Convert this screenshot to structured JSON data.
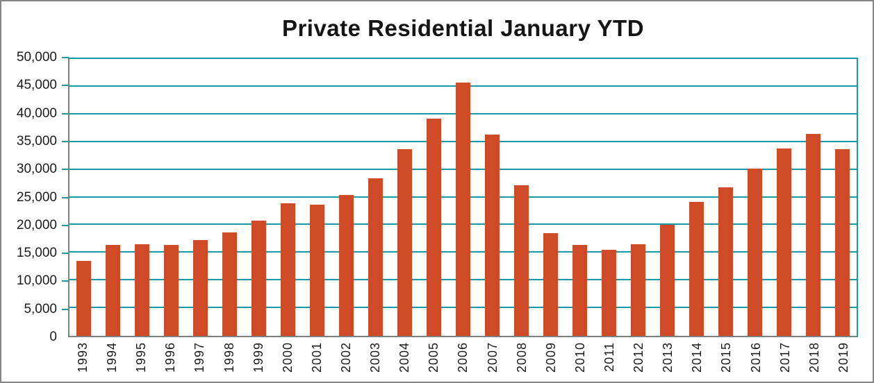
{
  "chart_data": {
    "type": "bar",
    "title": "Private Residential January YTD",
    "categories": [
      "1993",
      "1994",
      "1995",
      "1996",
      "1997",
      "1998",
      "1999",
      "2000",
      "2001",
      "2002",
      "2003",
      "2004",
      "2005",
      "2006",
      "2007",
      "2008",
      "2009",
      "2010",
      "2011",
      "2012",
      "2013",
      "2014",
      "2015",
      "2016",
      "2017",
      "2018",
      "2019"
    ],
    "values": [
      13500,
      16400,
      16600,
      16400,
      17300,
      18700,
      20800,
      23900,
      23700,
      25500,
      28400,
      33700,
      39200,
      45700,
      36400,
      27200,
      18600,
      16400,
      15600,
      16500,
      20000,
      24200,
      26800,
      30200,
      33800,
      36500,
      33700
    ],
    "xlabel": "",
    "ylabel": "",
    "ylim": [
      0,
      50000
    ],
    "ytick_step": 5000,
    "yticks": [
      0,
      5000,
      10000,
      15000,
      20000,
      25000,
      30000,
      35000,
      40000,
      45000,
      50000
    ],
    "yticklabels": [
      "0",
      "5,000",
      "10,000",
      "15,000",
      "20,000",
      "25,000",
      "30,000",
      "35,000",
      "40,000",
      "45,000",
      "50,000"
    ],
    "grid": true,
    "legend": false,
    "bar_color": "#cf4a27",
    "grid_color": "#1899a8",
    "axis_color": "#7f7f7f"
  }
}
